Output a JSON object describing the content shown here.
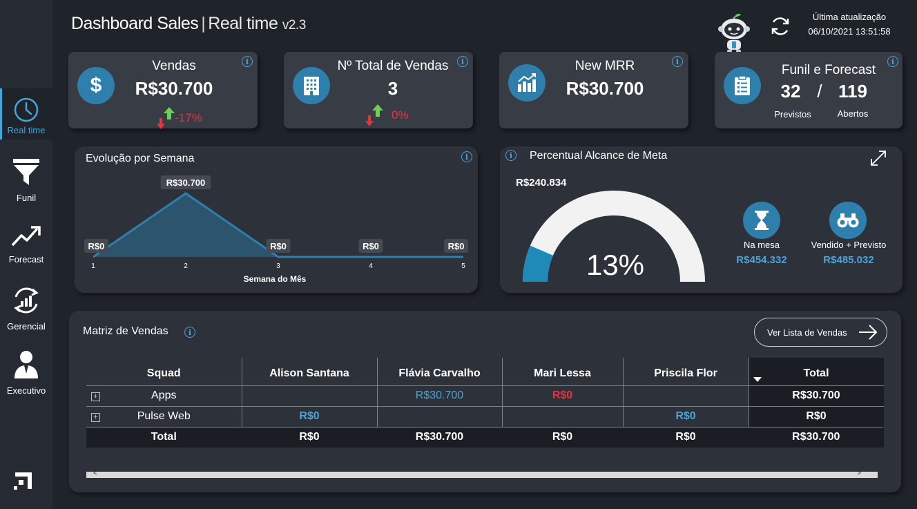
{
  "header": {
    "title_main": "Dashboard Sales",
    "title_sep": "|",
    "title_sub": "Real time",
    "version": "v2.3",
    "update_label": "Última atualização",
    "update_time": "06/10/2021 13:51:58"
  },
  "sidebar": {
    "items": [
      {
        "label": "Real time",
        "icon": "clock-icon",
        "active": true
      },
      {
        "label": "Funil",
        "icon": "funnel-icon"
      },
      {
        "label": "Forecast",
        "icon": "trend-up-icon"
      },
      {
        "label": "Gerencial",
        "icon": "chart-refresh-icon"
      },
      {
        "label": "Executivo",
        "icon": "executive-icon"
      }
    ],
    "logo_icon": "brand-logo-icon"
  },
  "kpis": {
    "vendas": {
      "title": "Vendas",
      "value": "R$30.700",
      "delta": "-17%",
      "icon": "dollar-icon"
    },
    "total_vendas": {
      "title": "Nº Total de Vendas",
      "value": "3",
      "delta": "0%",
      "icon": "building-icon"
    },
    "mrr": {
      "title": "New MRR",
      "value": "R$30.700",
      "icon": "bar-growth-icon"
    },
    "funil": {
      "title": "Funil e Forecast",
      "previstos_value": "32",
      "slash": "/",
      "abertos_value": "119",
      "previstos_label": "Previstos",
      "abertos_label": "Abertos",
      "icon": "clipboard-icon"
    }
  },
  "weekly": {
    "title": "Evolução por Semana",
    "chart_data": {
      "type": "area",
      "x": [
        1,
        2,
        3,
        4,
        5
      ],
      "values": [
        0,
        30700,
        0,
        0,
        0
      ],
      "data_labels": [
        "R$0",
        "R$30.700",
        "R$0",
        "R$0",
        "R$0"
      ],
      "xlabel": "Semana do Mês",
      "ylabel": "",
      "ylim": [
        0,
        30700
      ],
      "grid": false,
      "color": "#2f7fad"
    }
  },
  "meta": {
    "title": "Percentual Alcance de Meta",
    "target_value": "R$240.834",
    "percent_label": "13%",
    "gauge": {
      "fraction": 0.13,
      "color": "#1f8ab8",
      "track": "#f2f2f2"
    },
    "na_mesa_label": "Na mesa",
    "na_mesa_value": "R$454.332",
    "vendido_label": "Vendido + Previsto",
    "vendido_value": "R$485.032"
  },
  "matrix": {
    "title": "Matriz de Vendas",
    "button_label": "Ver Lista de Vendas",
    "columns": [
      "Squad",
      "Alison Santana",
      "Flávia Carvalho",
      "Mari Lessa",
      "Priscila Flor",
      "Total"
    ],
    "rows": [
      {
        "squad": "Apps",
        "cells": [
          "",
          "R$30.700",
          "R$0",
          ""
        ],
        "total": "R$30.700"
      },
      {
        "squad": "Pulse Web",
        "cells": [
          "R$0",
          "",
          "",
          "R$0"
        ],
        "total": "R$0"
      }
    ],
    "total_row": {
      "label": "Total",
      "cells": [
        "R$0",
        "R$30.700",
        "R$0",
        "R$0"
      ],
      "total": "R$30.700"
    },
    "scroll_left": "<",
    "scroll_right": ">",
    "expand_symbol": "+"
  }
}
